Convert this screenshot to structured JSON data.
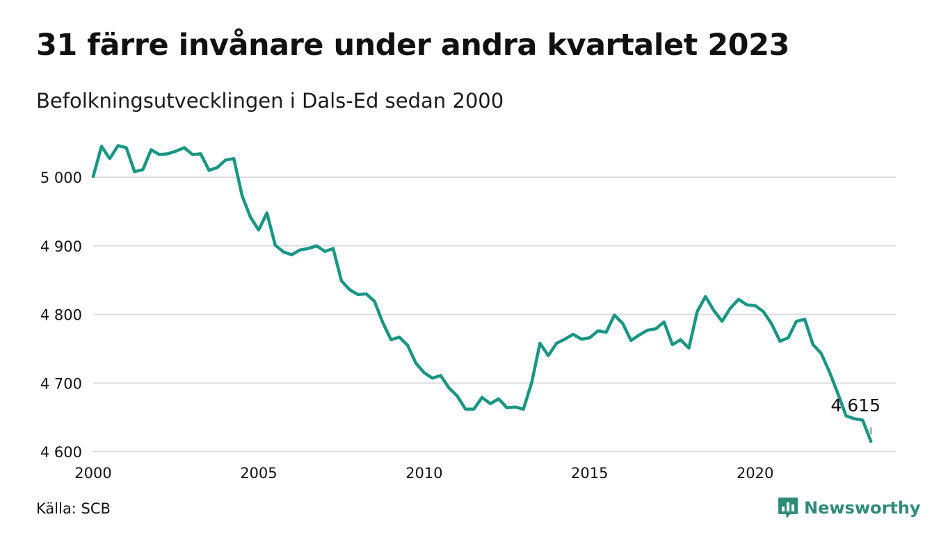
{
  "title": "31 färre invånare under andra kvartalet 2023",
  "subtitle": "Befolkningsutvecklingen i Dals-Ed sedan 2000",
  "source": "Källa: SCB",
  "brand": {
    "name": "Newsworthy",
    "icon": "bar-chart-logo-icon",
    "color": "#2e8b78"
  },
  "chart_data": {
    "type": "line",
    "color": "#1a9683",
    "grid": true,
    "xlim": [
      2000,
      2024
    ],
    "ylim": [
      4600,
      5060
    ],
    "yticks": [
      5000,
      4900,
      4800,
      4700,
      4600
    ],
    "ytick_labels": [
      "5 000",
      "4 900",
      "4 800",
      "4 700",
      "4 600"
    ],
    "xticks": [
      2000,
      2005,
      2010,
      2015,
      2020
    ],
    "xtick_labels": [
      "2000",
      "2005",
      "2010",
      "2015",
      "2020"
    ],
    "annotation": {
      "label": "4 615",
      "x": 2023.5,
      "y": 4615
    },
    "series": [
      {
        "x": [
          2000.0,
          2000.25,
          2000.5,
          2000.75,
          2001.0,
          2001.25,
          2001.5,
          2001.75,
          2002.0,
          2002.25,
          2002.5,
          2002.75,
          2003.0,
          2003.25,
          2003.5,
          2003.75,
          2004.0,
          2004.25,
          2004.5,
          2004.75,
          2005.0,
          2005.25,
          2005.5,
          2005.75,
          2006.0,
          2006.25,
          2006.5,
          2006.75,
          2007.0,
          2007.25,
          2007.5,
          2007.75,
          2008.0,
          2008.25,
          2008.5,
          2008.75,
          2009.0,
          2009.25,
          2009.5,
          2009.75,
          2010.0,
          2010.25,
          2010.5,
          2010.75,
          2011.0,
          2011.25,
          2011.5,
          2011.75,
          2012.0,
          2012.25,
          2012.5,
          2012.75,
          2013.0,
          2013.25,
          2013.5,
          2013.75,
          2014.0,
          2014.25,
          2014.5,
          2014.75,
          2015.0,
          2015.25,
          2015.5,
          2015.75,
          2016.0,
          2016.25,
          2016.5,
          2016.75,
          2017.0,
          2017.25,
          2017.5,
          2017.75,
          2018.0,
          2018.25,
          2018.5,
          2018.75,
          2019.0,
          2019.25,
          2019.5,
          2019.75,
          2020.0,
          2020.25,
          2020.5,
          2020.75,
          2021.0,
          2021.25,
          2021.5,
          2021.75,
          2022.0,
          2022.25,
          2022.5,
          2022.75,
          2023.0,
          2023.25,
          2023.5
        ],
        "values": [
          5001,
          5045,
          5027,
          5046,
          5043,
          5008,
          5011,
          5040,
          5033,
          5034,
          5038,
          5043,
          5033,
          5034,
          5010,
          5014,
          5025,
          5027,
          4973,
          4942,
          4923,
          4948,
          4901,
          4891,
          4887,
          4894,
          4896,
          4900,
          4892,
          4896,
          4849,
          4836,
          4829,
          4830,
          4819,
          4788,
          4763,
          4767,
          4755,
          4729,
          4715,
          4707,
          4711,
          4693,
          4681,
          4662,
          4662,
          4679,
          4670,
          4677,
          4664,
          4665,
          4662,
          4701,
          4758,
          4740,
          4758,
          4764,
          4771,
          4764,
          4766,
          4776,
          4774,
          4799,
          4787,
          4762,
          4770,
          4777,
          4779,
          4789,
          4756,
          4763,
          4751,
          4804,
          4826,
          4806,
          4790,
          4809,
          4822,
          4814,
          4813,
          4804,
          4786,
          4761,
          4766,
          4790,
          4793,
          4756,
          4743,
          4716,
          4685,
          4652,
          4648,
          4646,
          4615
        ]
      }
    ]
  }
}
